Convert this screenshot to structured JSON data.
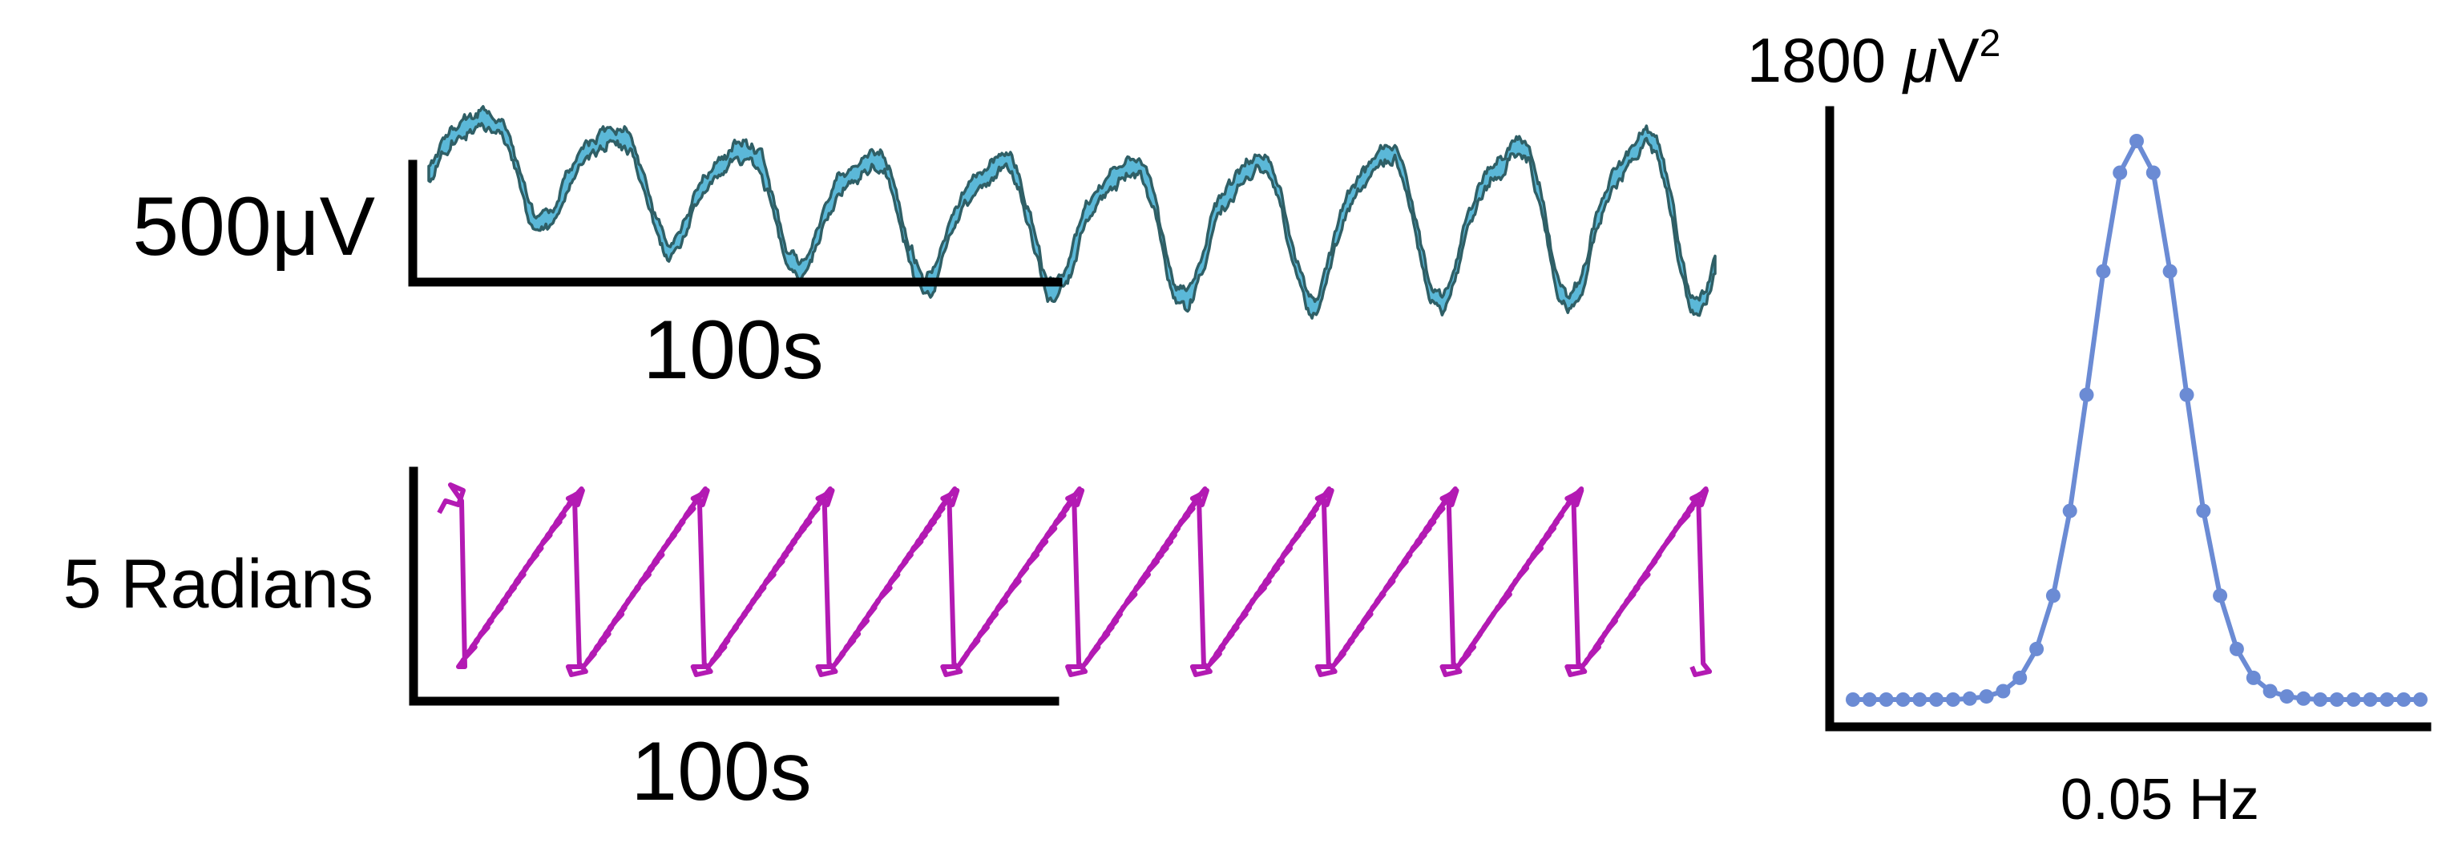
{
  "chart_data": [
    {
      "type": "line",
      "signal": "voltage trace",
      "scalebar": {
        "y_label": "500μV",
        "x_label": "100s",
        "y_value": 500,
        "y_unit": "μV",
        "x_value": 100,
        "x_unit": "s"
      },
      "x_range_s": [
        0,
        200
      ],
      "period_s": 20,
      "cycles": 10,
      "stroke": "#2f5f66",
      "fill": "#5bb8d8"
    },
    {
      "type": "line",
      "signal": "phase trace",
      "scalebar": {
        "y_label": "5 Radians",
        "x_label": "100s",
        "y_value": 5,
        "y_unit": "Radians",
        "x_value": 100,
        "x_unit": "s"
      },
      "phase_range_rad": [
        -3.14,
        3.14
      ],
      "x_range_s": [
        0,
        200
      ],
      "period_s": 20,
      "cycles": 10,
      "color": "#b31ab3"
    },
    {
      "type": "line",
      "signal": "power spectrum",
      "y_label": "1800 μV²",
      "y_label_parts": {
        "value": "1800 ",
        "unit": "μ",
        "unit2": "V",
        "exp": "2"
      },
      "x_label": "0.05 Hz",
      "ylim": [
        0,
        1800
      ],
      "peak_hz": 0.05,
      "peak_value": 1800,
      "color": "#6b8bd4",
      "points": [
        0,
        0,
        0,
        0,
        0,
        0,
        0,
        3,
        10,
        27,
        70,
        163,
        335,
        608,
        982,
        1380,
        1698,
        1800,
        1698,
        1380,
        982,
        608,
        335,
        163,
        70,
        27,
        10,
        3,
        0,
        0,
        0,
        0,
        0,
        0,
        0
      ]
    }
  ]
}
